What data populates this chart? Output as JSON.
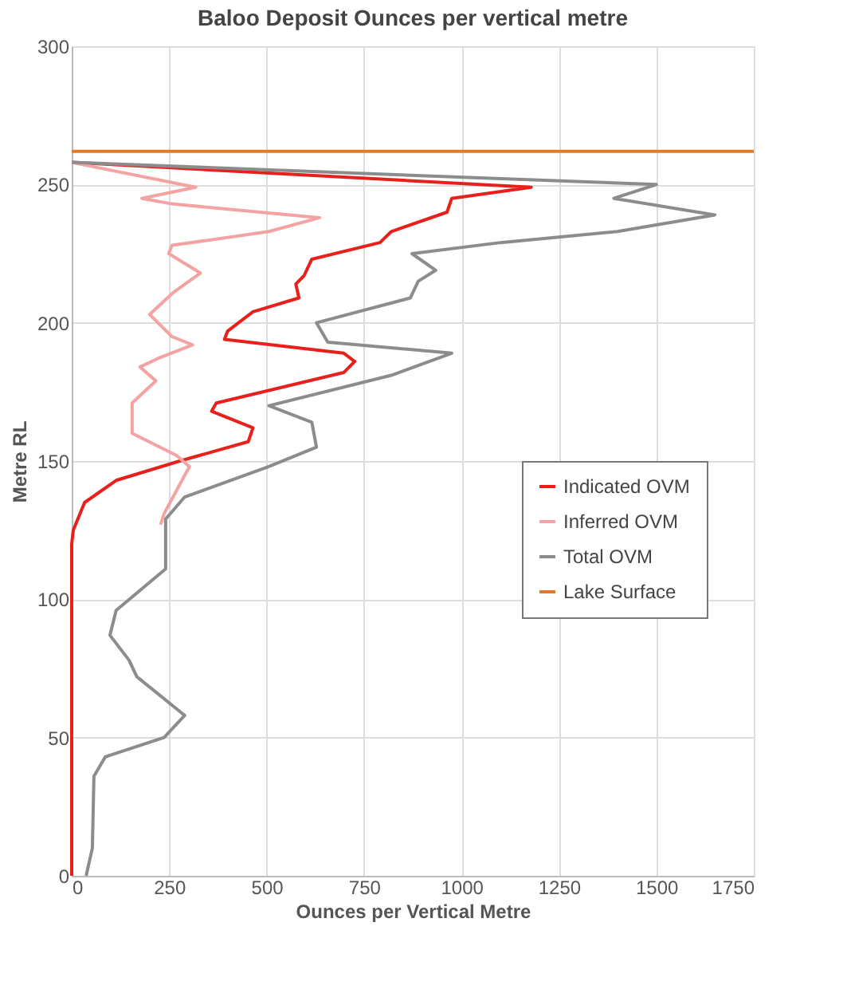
{
  "chart_data": {
    "type": "line",
    "title": "Baloo Deposit Ounces per vertical metre",
    "xlabel": "Ounces per Vertical Metre",
    "ylabel": "Metre RL",
    "xlim": [
      0,
      1750
    ],
    "xticks": [
      0,
      250,
      500,
      750,
      1000,
      1250,
      1500,
      1750
    ],
    "ylim": [
      0,
      300
    ],
    "yticks": [
      0,
      50,
      100,
      150,
      200,
      250,
      300
    ],
    "grid": true,
    "legend": "right",
    "line_style": "solid",
    "marker": "none",
    "series": [
      {
        "name": "Indicated OVM",
        "color": "#e8201c",
        "x": [
          0,
          1179,
          975,
          963,
          820,
          791,
          616,
          596,
          575,
          583,
          465,
          400,
          392,
          698,
          726,
          698,
          371,
          359,
          465,
          453,
          277,
          114,
          33,
          4,
          0,
          0
        ],
        "values": [
          258,
          249,
          245,
          240,
          233,
          229,
          223,
          217,
          214,
          209,
          204,
          197,
          194,
          189,
          186,
          182,
          171,
          168,
          162,
          157,
          150,
          143,
          135,
          125,
          120,
          0
        ]
      },
      {
        "name": "Inferred OVM",
        "color": "#f4a3a3",
        "x": [
          0,
          318,
          180,
          257,
          636,
          506,
          257,
          249,
          330,
          261,
          200,
          257,
          310,
          220,
          175,
          216,
          155,
          155,
          269,
          302,
          237,
          228
        ],
        "values": [
          258,
          249,
          245,
          243,
          238,
          233,
          228,
          225,
          218,
          211,
          203,
          195,
          192,
          187,
          184,
          179,
          171,
          160,
          152,
          148,
          131,
          127
        ]
      },
      {
        "name": "Total OVM",
        "color": "#8c8c8c",
        "x": [
          0,
          1500,
          1391,
          1650,
          1400,
          1100,
          873,
          934,
          889,
          869,
          628,
          657,
          975,
          820,
          506,
          616,
          628,
          506,
          290,
          241,
          241,
          241,
          114,
          98,
          147,
          167,
          290,
          237,
          86,
          57,
          53,
          37
        ],
        "values": [
          258,
          250,
          245,
          239,
          233,
          229,
          225,
          219,
          215,
          209,
          200,
          193,
          189,
          181,
          170,
          164,
          155,
          148,
          137,
          129,
          115,
          111,
          96,
          87,
          78,
          72,
          58,
          50,
          43,
          36,
          10,
          0
        ]
      },
      {
        "name": "Lake Surface",
        "color": "#e07b2a",
        "x": [
          0,
          1750
        ],
        "values": [
          262,
          262
        ]
      }
    ]
  }
}
